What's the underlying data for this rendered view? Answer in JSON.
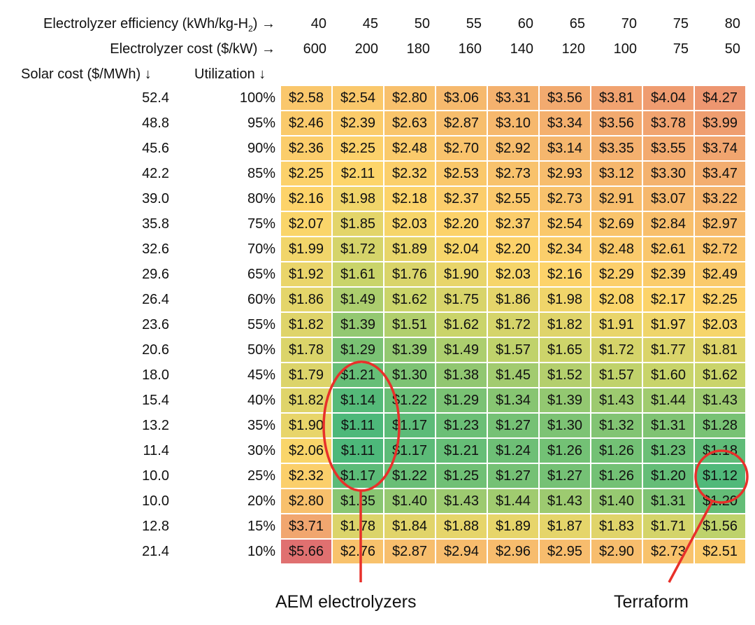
{
  "chart_data": {
    "type": "heatmap",
    "headers": {
      "efficiency_label": "Electrolyzer efficiency (kWh/kg-H",
      "efficiency_subscript": "2",
      "efficiency_suffix": ") →",
      "cost_label": "Electrolyzer cost ($/kW) →",
      "solar_label": "Solar cost ($/MWh) ↓",
      "utilization_label": "Utilization ↓"
    },
    "efficiency": [
      "40",
      "45",
      "50",
      "55",
      "60",
      "65",
      "70",
      "75",
      "80"
    ],
    "electrolyzer_cost": [
      "600",
      "200",
      "180",
      "160",
      "140",
      "120",
      "100",
      "75",
      "50"
    ],
    "solar_cost": [
      "52.4",
      "48.8",
      "45.6",
      "42.2",
      "39.0",
      "35.8",
      "32.6",
      "29.6",
      "26.4",
      "23.6",
      "20.6",
      "18.0",
      "15.4",
      "13.2",
      "11.4",
      "10.0",
      "10.0",
      "12.8",
      "21.4"
    ],
    "utilization": [
      "100%",
      "95%",
      "90%",
      "85%",
      "80%",
      "75%",
      "70%",
      "65%",
      "60%",
      "55%",
      "50%",
      "45%",
      "40%",
      "35%",
      "30%",
      "25%",
      "20%",
      "15%",
      "10%"
    ],
    "values": [
      [
        2.58,
        2.54,
        2.8,
        3.06,
        3.31,
        3.56,
        3.81,
        4.04,
        4.27
      ],
      [
        2.46,
        2.39,
        2.63,
        2.87,
        3.1,
        3.34,
        3.56,
        3.78,
        3.99
      ],
      [
        2.36,
        2.25,
        2.48,
        2.7,
        2.92,
        3.14,
        3.35,
        3.55,
        3.74
      ],
      [
        2.25,
        2.11,
        2.32,
        2.53,
        2.73,
        2.93,
        3.12,
        3.3,
        3.47
      ],
      [
        2.16,
        1.98,
        2.18,
        2.37,
        2.55,
        2.73,
        2.91,
        3.07,
        3.22
      ],
      [
        2.07,
        1.85,
        2.03,
        2.2,
        2.37,
        2.54,
        2.69,
        2.84,
        2.97
      ],
      [
        1.99,
        1.72,
        1.89,
        2.04,
        2.2,
        2.34,
        2.48,
        2.61,
        2.72
      ],
      [
        1.92,
        1.61,
        1.76,
        1.9,
        2.03,
        2.16,
        2.29,
        2.39,
        2.49
      ],
      [
        1.86,
        1.49,
        1.62,
        1.75,
        1.86,
        1.98,
        2.08,
        2.17,
        2.25
      ],
      [
        1.82,
        1.39,
        1.51,
        1.62,
        1.72,
        1.82,
        1.91,
        1.97,
        2.03
      ],
      [
        1.78,
        1.29,
        1.39,
        1.49,
        1.57,
        1.65,
        1.72,
        1.77,
        1.81
      ],
      [
        1.79,
        1.21,
        1.3,
        1.38,
        1.45,
        1.52,
        1.57,
        1.6,
        1.62
      ],
      [
        1.82,
        1.14,
        1.22,
        1.29,
        1.34,
        1.39,
        1.43,
        1.44,
        1.43
      ],
      [
        1.9,
        1.11,
        1.17,
        1.23,
        1.27,
        1.3,
        1.32,
        1.31,
        1.28
      ],
      [
        2.06,
        1.11,
        1.17,
        1.21,
        1.24,
        1.26,
        1.26,
        1.23,
        1.18
      ],
      [
        2.32,
        1.17,
        1.22,
        1.25,
        1.27,
        1.27,
        1.26,
        1.2,
        1.12
      ],
      [
        2.8,
        1.35,
        1.4,
        1.43,
        1.44,
        1.43,
        1.4,
        1.31,
        1.2
      ],
      [
        3.71,
        1.78,
        1.84,
        1.88,
        1.89,
        1.87,
        1.83,
        1.71,
        1.56
      ],
      [
        5.66,
        2.76,
        2.87,
        2.94,
        2.96,
        2.95,
        2.9,
        2.73,
        2.51
      ]
    ],
    "value_prefix": "$",
    "colors": {
      "low": "#4db87a",
      "mid_low": "#c8d46a",
      "mid": "#fdd56a",
      "high": "#f0a070",
      "max": "#e07070",
      "annotation": "#e8302a"
    },
    "annotations": [
      {
        "label": "AEM electrolyzers",
        "column": "45"
      },
      {
        "label": "Terraform",
        "column": "80"
      }
    ]
  }
}
